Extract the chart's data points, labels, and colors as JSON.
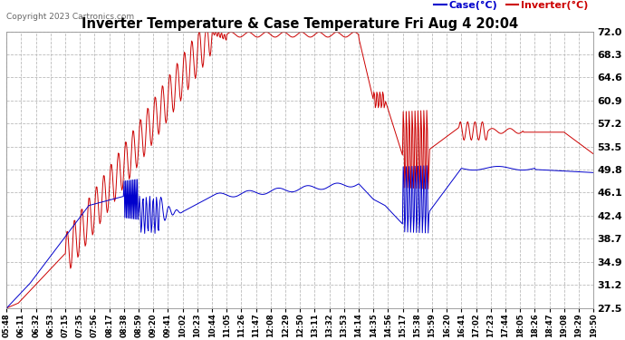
{
  "title": "Inverter Temperature & Case Temperature Fri Aug 4 20:04",
  "copyright": "Copyright 2023 Cartronics.com",
  "legend_case": "Case(°C)",
  "legend_inverter": "Inverter(°C)",
  "ylabel_right_ticks": [
    27.5,
    31.2,
    34.9,
    38.7,
    42.4,
    46.1,
    49.8,
    53.5,
    57.2,
    60.9,
    64.6,
    68.3,
    72.0
  ],
  "ymin": 27.5,
  "ymax": 72.0,
  "bg_color": "#ffffff",
  "grid_color": "#bbbbbb",
  "case_color": "#0000cc",
  "inverter_color": "#cc0000",
  "x_labels": [
    "05:48",
    "06:11",
    "06:32",
    "06:53",
    "07:15",
    "07:35",
    "07:56",
    "08:17",
    "08:38",
    "08:59",
    "09:20",
    "09:41",
    "10:02",
    "10:23",
    "10:44",
    "11:05",
    "11:26",
    "11:47",
    "12:08",
    "12:29",
    "12:50",
    "13:11",
    "13:32",
    "13:53",
    "14:14",
    "14:35",
    "14:56",
    "15:17",
    "15:38",
    "15:59",
    "16:20",
    "16:41",
    "17:02",
    "17:23",
    "17:44",
    "18:05",
    "18:26",
    "18:47",
    "19:08",
    "19:29",
    "19:50"
  ]
}
